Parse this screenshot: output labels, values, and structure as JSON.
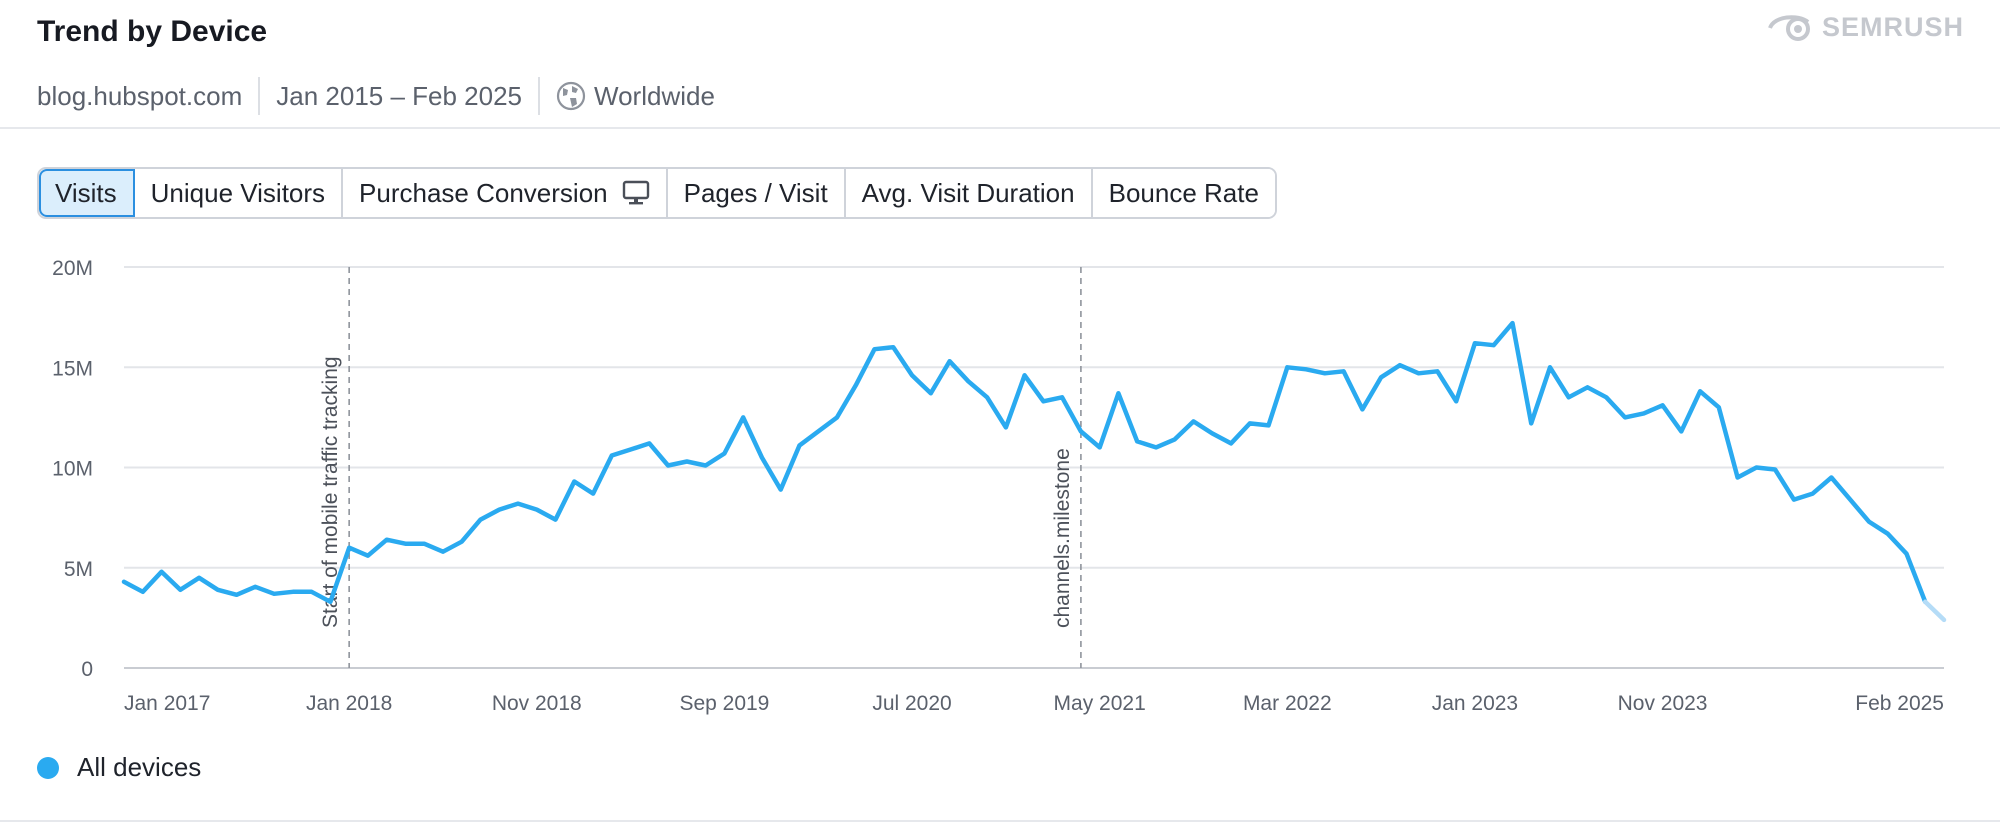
{
  "header": {
    "title": "Trend by Device",
    "brand": "SEMRUSH",
    "domain": "blog.hubspot.com",
    "date_range": "Jan 2015 – Feb 2025",
    "region": "Worldwide",
    "region_icon": "globe-icon"
  },
  "tabs": [
    {
      "label": "Visits",
      "active": true
    },
    {
      "label": "Unique Visitors",
      "active": false
    },
    {
      "label": "Purchase Conversion",
      "active": false,
      "icon": "desktop-monitor-icon"
    },
    {
      "label": "Pages / Visit",
      "active": false
    },
    {
      "label": "Avg. Visit Duration",
      "active": false
    },
    {
      "label": "Bounce Rate",
      "active": false
    }
  ],
  "colors": {
    "series": "#2aaaf0",
    "series_projected": "#b5dcf7",
    "grid": "#e3e5e9",
    "axis_text": "#5b616c",
    "tab_active_bg": "#dbeefc",
    "tab_active_border": "#2b8fe0"
  },
  "chart_data": {
    "type": "line",
    "title": "Trend by Device",
    "xlabel": "",
    "ylabel": "",
    "ylim": [
      0,
      20000000
    ],
    "yticks": [
      0,
      5000000,
      10000000,
      15000000,
      20000000
    ],
    "ytick_labels": [
      "0",
      "5M",
      "10M",
      "15M",
      "20M"
    ],
    "xlim": [
      0,
      97
    ],
    "xticks": [
      {
        "x": 0,
        "label": "Jan 2017"
      },
      {
        "x": 12,
        "label": "Jan 2018"
      },
      {
        "x": 22,
        "label": "Nov 2018"
      },
      {
        "x": 32,
        "label": "Sep 2019"
      },
      {
        "x": 42,
        "label": "Jul 2020"
      },
      {
        "x": 52,
        "label": "May 2021"
      },
      {
        "x": 62,
        "label": "Mar 2022"
      },
      {
        "x": 72,
        "label": "Jan 2023"
      },
      {
        "x": 82,
        "label": "Nov 2023"
      },
      {
        "x": 97,
        "label": "Feb 2025"
      }
    ],
    "grid": true,
    "legend": {
      "position": "bottom-left",
      "entries": [
        "All devices"
      ]
    },
    "annotations": [
      {
        "x": 12,
        "label": "Start of mobile traffic tracking"
      },
      {
        "x": 51,
        "label": "channels.milestone"
      }
    ],
    "series": [
      {
        "name": "All devices",
        "x": [
          0,
          1,
          2,
          3,
          4,
          5,
          6,
          7,
          8,
          9,
          10,
          11,
          12,
          13,
          14,
          15,
          16,
          17,
          18,
          19,
          20,
          21,
          22,
          23,
          24,
          25,
          26,
          27,
          28,
          29,
          30,
          31,
          32,
          33,
          34,
          35,
          36,
          37,
          38,
          39,
          40,
          41,
          42,
          43,
          44,
          45,
          46,
          47,
          48,
          49,
          50,
          51,
          52,
          53,
          54,
          55,
          56,
          57,
          58,
          59,
          60,
          61,
          62,
          63,
          64,
          65,
          66,
          67,
          68,
          69,
          70,
          71,
          72,
          73,
          74,
          75,
          76,
          77,
          78,
          79,
          80,
          81,
          82,
          83,
          84,
          85,
          86,
          87,
          88,
          89,
          90,
          91,
          92,
          93,
          94,
          95,
          96
        ],
        "values": [
          4300000,
          3800000,
          4800000,
          3900000,
          4500000,
          3900000,
          3650000,
          4050000,
          3700000,
          3800000,
          3800000,
          3300000,
          6000000,
          5600000,
          6400000,
          6200000,
          6200000,
          5800000,
          6300000,
          7400000,
          7900000,
          8200000,
          7900000,
          7400000,
          9300000,
          8700000,
          10600000,
          10900000,
          11200000,
          10100000,
          10300000,
          10100000,
          10700000,
          12500000,
          10500000,
          8900000,
          11100000,
          11800000,
          12500000,
          14100000,
          15900000,
          16000000,
          14600000,
          13700000,
          15300000,
          14300000,
          13500000,
          12000000,
          14600000,
          13300000,
          13500000,
          11800000,
          11000000,
          13700000,
          11300000,
          11000000,
          11400000,
          12300000,
          11700000,
          11200000,
          12200000,
          12100000,
          15000000,
          14900000,
          14700000,
          14800000,
          12900000,
          14500000,
          15100000,
          14700000,
          14800000,
          13300000,
          16200000,
          16100000,
          17200000,
          12200000,
          15000000,
          13500000,
          14000000,
          13500000,
          12500000,
          12700000,
          13100000,
          11800000,
          13800000,
          13000000,
          9500000,
          10000000,
          9900000,
          8400000,
          8700000,
          9500000,
          8400000,
          7300000,
          6700000,
          5700000,
          3300000
        ]
      }
    ],
    "projected_segment": {
      "x": [
        96,
        97
      ],
      "values": [
        3300000,
        2400000
      ]
    }
  }
}
